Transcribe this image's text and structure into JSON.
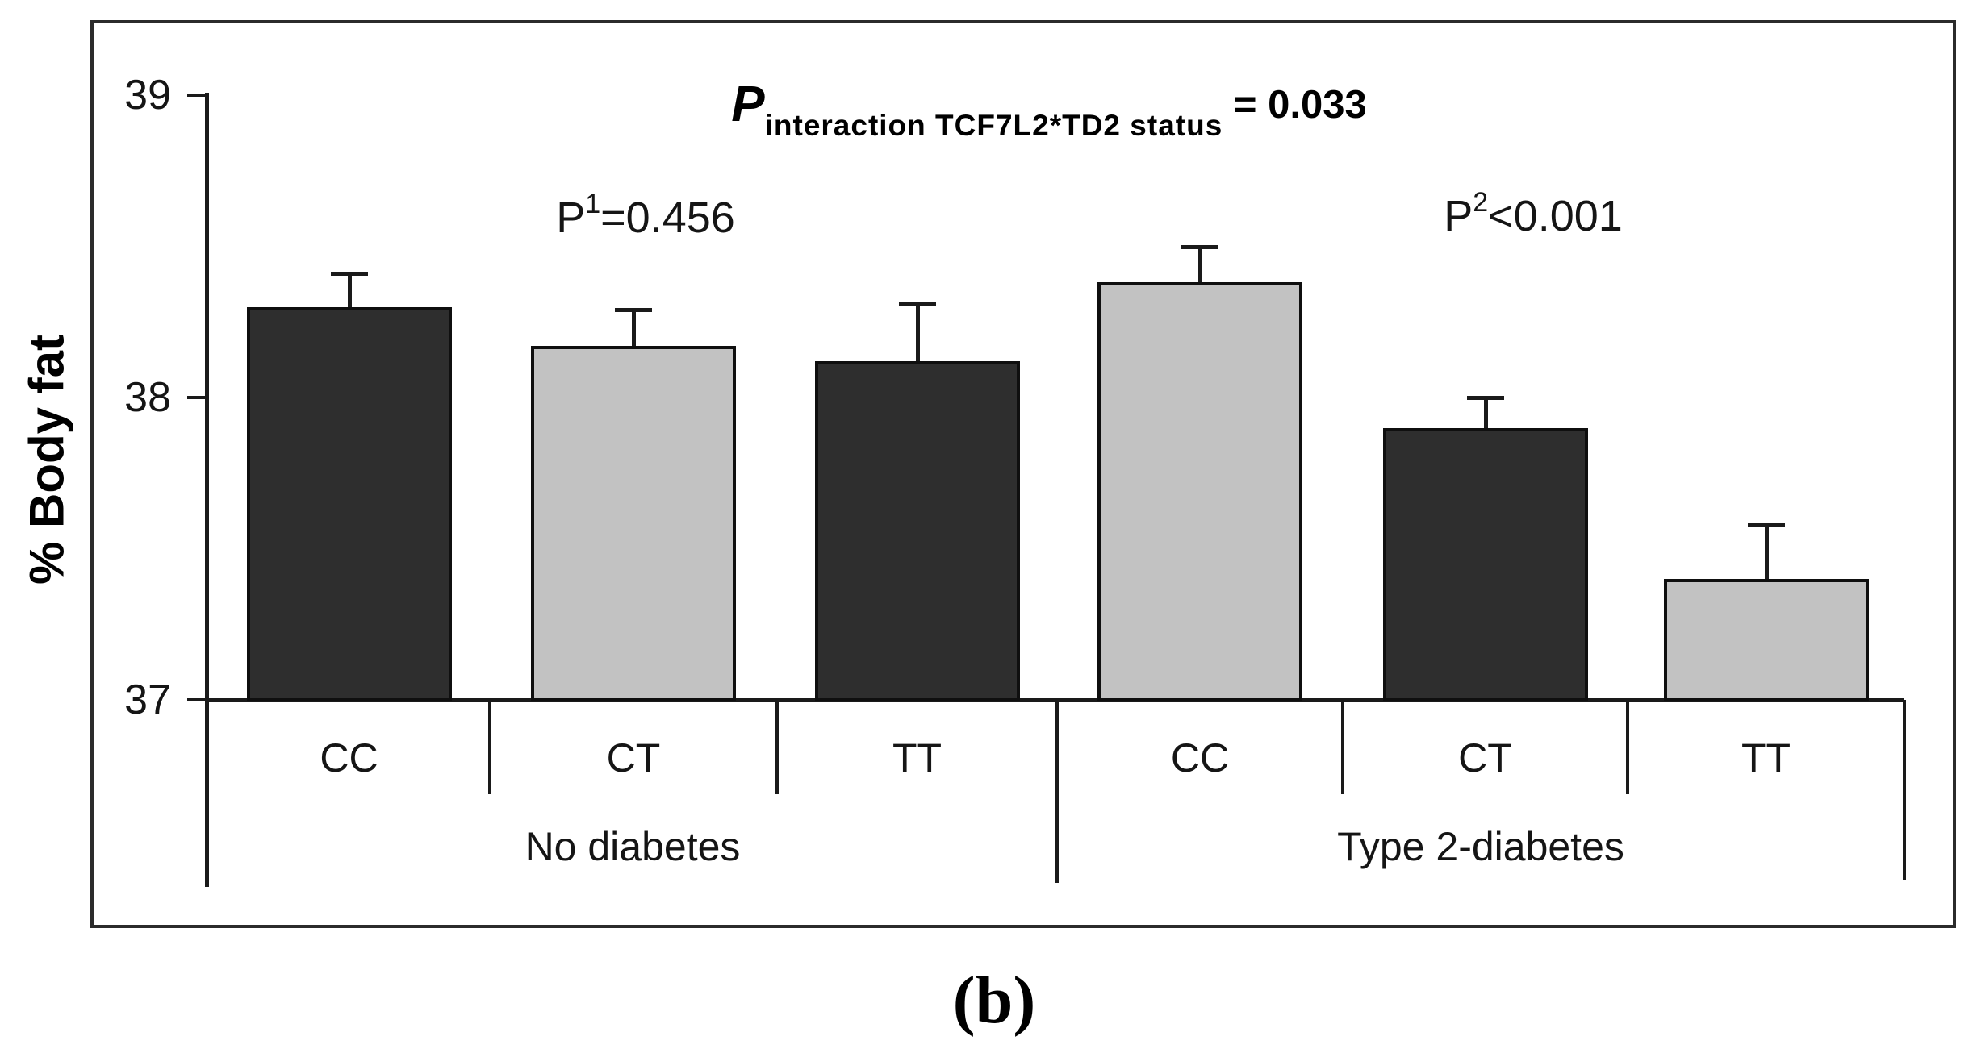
{
  "figure": {
    "panel_label": "(b)",
    "title_parts": {
      "p_symbol": "P",
      "subscript": "interaction TCF7L2*TD2 status",
      "result": " = 0.033"
    },
    "annotations": [
      {
        "base": "P",
        "sup": "1",
        "rest": "=0.456"
      },
      {
        "base": "P",
        "sup": "2",
        "rest": "<0.001"
      }
    ]
  },
  "chart_data": {
    "type": "bar",
    "title": "P interaction TCF7L2*TD2 status = 0.033",
    "xlabel": "",
    "ylabel": "% Body fat",
    "ylim": [
      37,
      39
    ],
    "yticks": [
      39,
      38,
      37
    ],
    "grid": false,
    "legend": "none",
    "error_bars": "plus_only",
    "groups": [
      {
        "label": "No diabetes",
        "p_annotation": "P1=0.456",
        "categories": [
          "CC",
          "CT",
          "TT"
        ],
        "values": [
          38.3,
          38.17,
          38.12
        ],
        "errors_plus": [
          0.11,
          0.12,
          0.19
        ]
      },
      {
        "label": "Type 2-diabetes",
        "p_annotation": "P2<0.001",
        "categories": [
          "CC",
          "CT",
          "TT"
        ],
        "values": [
          38.38,
          37.9,
          37.4
        ],
        "errors_plus": [
          0.12,
          0.1,
          0.18
        ]
      }
    ],
    "bar_fill_pattern": [
      "dark",
      "light",
      "dark",
      "light",
      "dark",
      "light"
    ]
  },
  "colors": {
    "bar_dark": "#2e2e2e",
    "bar_light": "#c2c2c2",
    "bar_border": "#0f0f0f",
    "axis": "#1a1a1a",
    "frame": "#2b2b2b",
    "text": "#151515"
  }
}
